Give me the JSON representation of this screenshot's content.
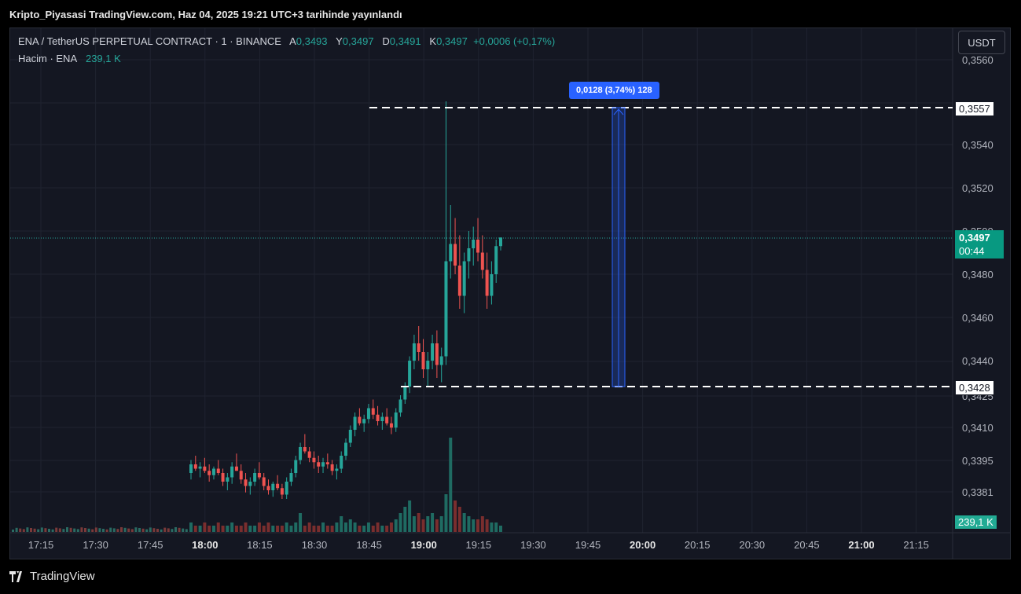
{
  "published": "Kripto_Piyasasi TradingView.com, Haz 04, 2025 19:21 UTC+3 tarihinde yayınlandı",
  "legend": {
    "symbol": "ENA / TetherUS PERPETUAL CONTRACT · 1 · BINANCE",
    "o_label": "A",
    "o": "0,3493",
    "h_label": "Y",
    "h": "0,3497",
    "l_label": "D",
    "l": "0,3491",
    "c_label": "K",
    "c": "0,3497",
    "change": "+0,0006 (+0,17%)",
    "volume_label": "Hacim · ENA",
    "volume": "239,1 K"
  },
  "currency_button": "USDT",
  "price_tags": {
    "upper": "0,3557",
    "lower": "0,3428",
    "last": "0,3497",
    "countdown": "00:44",
    "volume": "239,1 K"
  },
  "measure_label": "0,0128 (3,74%) 128",
  "brand": "TradingView",
  "colors": {
    "up": "#26a69a",
    "down": "#ef5350",
    "measure": "#2962ff"
  },
  "chart_data": {
    "type": "candlestick",
    "y_ticks": [
      "0,3560",
      "0,3540",
      "0,3520",
      "0,3500",
      "0,3480",
      "0,3460",
      "0,3440",
      "0,3425",
      "0,3410",
      "0,3395",
      "0,3381"
    ],
    "x_ticks": [
      {
        "label": "17:15",
        "bold": false
      },
      {
        "label": "17:30",
        "bold": false
      },
      {
        "label": "17:45",
        "bold": false
      },
      {
        "label": "18:00",
        "bold": true
      },
      {
        "label": "18:15",
        "bold": false
      },
      {
        "label": "18:30",
        "bold": false
      },
      {
        "label": "18:45",
        "bold": false
      },
      {
        "label": "19:00",
        "bold": true
      },
      {
        "label": "19:15",
        "bold": false
      },
      {
        "label": "19:30",
        "bold": false
      },
      {
        "label": "19:45",
        "bold": false
      },
      {
        "label": "20:00",
        "bold": true
      },
      {
        "label": "20:15",
        "bold": false
      },
      {
        "label": "20:30",
        "bold": false
      },
      {
        "label": "20:45",
        "bold": false
      },
      {
        "label": "21:00",
        "bold": true
      },
      {
        "label": "21:15",
        "bold": false
      }
    ],
    "measure": {
      "from": 0.3428,
      "to": 0.3557,
      "delta": 0.0128,
      "pct": 3.74,
      "bars": 128
    },
    "candles": [
      [
        0.3388,
        0.3394,
        0.3385,
        0.3392
      ],
      [
        0.3392,
        0.3396,
        0.3389,
        0.339
      ],
      [
        0.339,
        0.3393,
        0.3386,
        0.3391
      ],
      [
        0.3391,
        0.3395,
        0.3388,
        0.3389
      ],
      [
        0.3389,
        0.3392,
        0.3384,
        0.3387
      ],
      [
        0.3387,
        0.3391,
        0.3385,
        0.339
      ],
      [
        0.339,
        0.3394,
        0.3387,
        0.3388
      ],
      [
        0.3388,
        0.339,
        0.3382,
        0.3384
      ],
      [
        0.3384,
        0.3388,
        0.338,
        0.3386
      ],
      [
        0.3386,
        0.3393,
        0.3383,
        0.3391
      ],
      [
        0.3391,
        0.3397,
        0.3389,
        0.3389
      ],
      [
        0.3389,
        0.3392,
        0.3383,
        0.3385
      ],
      [
        0.3385,
        0.3388,
        0.3379,
        0.3382
      ],
      [
        0.3382,
        0.3386,
        0.3378,
        0.3384
      ],
      [
        0.3384,
        0.339,
        0.3382,
        0.3388
      ],
      [
        0.3388,
        0.3393,
        0.3385,
        0.3386
      ],
      [
        0.3386,
        0.3388,
        0.338,
        0.3382
      ],
      [
        0.3382,
        0.3385,
        0.3378,
        0.338
      ],
      [
        0.338,
        0.3384,
        0.3377,
        0.3383
      ],
      [
        0.3383,
        0.3387,
        0.338,
        0.3381
      ],
      [
        0.3381,
        0.3383,
        0.3376,
        0.3378
      ],
      [
        0.3378,
        0.3386,
        0.3376,
        0.3384
      ],
      [
        0.3384,
        0.339,
        0.3382,
        0.3388
      ],
      [
        0.3388,
        0.3396,
        0.3386,
        0.3394
      ],
      [
        0.3394,
        0.3402,
        0.3392,
        0.34
      ],
      [
        0.34,
        0.3406,
        0.3397,
        0.3398
      ],
      [
        0.3398,
        0.34,
        0.3393,
        0.3395
      ],
      [
        0.3395,
        0.3398,
        0.339,
        0.3393
      ],
      [
        0.3393,
        0.3396,
        0.3388,
        0.3391
      ],
      [
        0.3391,
        0.3395,
        0.3388,
        0.3393
      ],
      [
        0.3393,
        0.3397,
        0.339,
        0.3392
      ],
      [
        0.3392,
        0.3394,
        0.3387,
        0.3389
      ],
      [
        0.3389,
        0.3392,
        0.3385,
        0.339
      ],
      [
        0.339,
        0.3398,
        0.3388,
        0.3396
      ],
      [
        0.3396,
        0.3404,
        0.3394,
        0.3402
      ],
      [
        0.3402,
        0.341,
        0.34,
        0.3408
      ],
      [
        0.3408,
        0.3416,
        0.3405,
        0.3414
      ],
      [
        0.3414,
        0.3418,
        0.341,
        0.3411
      ],
      [
        0.3411,
        0.3415,
        0.3407,
        0.3413
      ],
      [
        0.3413,
        0.342,
        0.3411,
        0.3418
      ],
      [
        0.3418,
        0.3422,
        0.3413,
        0.3415
      ],
      [
        0.3415,
        0.3419,
        0.341,
        0.3412
      ],
      [
        0.3412,
        0.3416,
        0.3408,
        0.3414
      ],
      [
        0.3414,
        0.3418,
        0.341,
        0.3411
      ],
      [
        0.3411,
        0.3414,
        0.3406,
        0.3409
      ],
      [
        0.3409,
        0.3418,
        0.3407,
        0.3416
      ],
      [
        0.3416,
        0.3424,
        0.3414,
        0.3422
      ],
      [
        0.3422,
        0.343,
        0.342,
        0.3428
      ],
      [
        0.3428,
        0.3442,
        0.3425,
        0.344
      ],
      [
        0.344,
        0.3452,
        0.3436,
        0.3448
      ],
      [
        0.3448,
        0.3456,
        0.344,
        0.3444
      ],
      [
        0.3444,
        0.345,
        0.3432,
        0.3436
      ],
      [
        0.3436,
        0.3444,
        0.3428,
        0.344
      ],
      [
        0.344,
        0.3452,
        0.3436,
        0.3448
      ],
      [
        0.3448,
        0.3454,
        0.3432,
        0.3438
      ],
      [
        0.3438,
        0.3446,
        0.343,
        0.3442
      ],
      [
        0.3442,
        0.356,
        0.3438,
        0.3486
      ],
      [
        0.3486,
        0.3512,
        0.3478,
        0.3494
      ],
      [
        0.3494,
        0.3506,
        0.348,
        0.3484
      ],
      [
        0.3484,
        0.3498,
        0.3464,
        0.347
      ],
      [
        0.347,
        0.349,
        0.3462,
        0.3486
      ],
      [
        0.3486,
        0.35,
        0.3478,
        0.3492
      ],
      [
        0.3492,
        0.3502,
        0.3484,
        0.3496
      ],
      [
        0.3496,
        0.3506,
        0.3486,
        0.349
      ],
      [
        0.349,
        0.3498,
        0.3478,
        0.3482
      ],
      [
        0.3482,
        0.349,
        0.3464,
        0.347
      ],
      [
        0.347,
        0.3486,
        0.3466,
        0.348
      ],
      [
        0.348,
        0.3496,
        0.3476,
        0.3493
      ],
      [
        0.3493,
        0.3497,
        0.3491,
        0.3497
      ]
    ],
    "volumes": [
      3,
      2,
      2,
      3,
      2,
      2,
      3,
      2,
      2,
      3,
      2,
      2,
      3,
      2,
      2,
      3,
      2,
      3,
      2,
      2,
      2,
      3,
      2,
      3,
      6,
      2,
      3,
      2,
      2,
      3,
      2,
      2,
      3,
      5,
      3,
      4,
      3,
      2,
      2,
      3,
      2,
      3,
      2,
      2,
      3,
      4,
      6,
      8,
      10,
      5,
      6,
      4,
      5,
      6,
      4,
      5,
      12,
      30,
      10,
      8,
      6,
      5,
      4,
      4,
      5,
      4,
      3,
      3,
      2
    ],
    "volume_max": 40
  }
}
